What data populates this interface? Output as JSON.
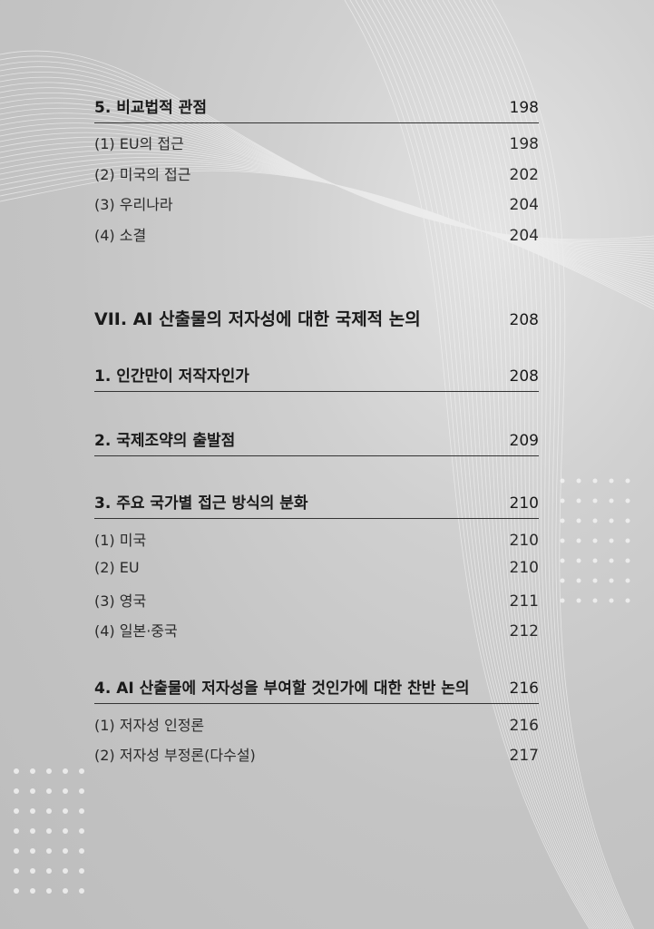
{
  "toc": [
    {
      "level": "section",
      "title": "5. 비교법적 관점",
      "page": "198"
    },
    {
      "level": "sub",
      "title": "(1) EU의 접근",
      "page": "198"
    },
    {
      "level": "sub",
      "title": "(2) 미국의 접근",
      "page": "202"
    },
    {
      "level": "sub",
      "title": "(3) 우리나라",
      "page": "204"
    },
    {
      "level": "sub",
      "title": "(4) 소결",
      "page": "204"
    },
    {
      "level": "chapter",
      "title": "VII. AI 산출물의 저자성에 대한 국제적 논의",
      "page": "208"
    },
    {
      "level": "section",
      "title": "1. 인간만이 저작자인가",
      "page": "208"
    },
    {
      "level": "section",
      "title": "2. 국제조약의 출발점",
      "page": "209"
    },
    {
      "level": "section",
      "title": "3. 주요 국가별 접근 방식의 분화",
      "page": "210"
    },
    {
      "level": "sub",
      "title": "(1) 미국",
      "page": "210"
    },
    {
      "level": "sub",
      "title": "(2) EU",
      "page": "210"
    },
    {
      "level": "sub",
      "title": "(3) 영국",
      "page": "211"
    },
    {
      "level": "sub",
      "title": "(4) 일본·중국",
      "page": "212"
    },
    {
      "level": "section",
      "title": "4. AI 산출물에 저자성을 부여할 것인가에 대한 찬반 논의",
      "page": "216"
    },
    {
      "level": "sub",
      "title": "(1) 저자성 인정론",
      "page": "216"
    },
    {
      "level": "sub",
      "title": "(2) 저자성 부정론(다수설)",
      "page": "217"
    }
  ]
}
